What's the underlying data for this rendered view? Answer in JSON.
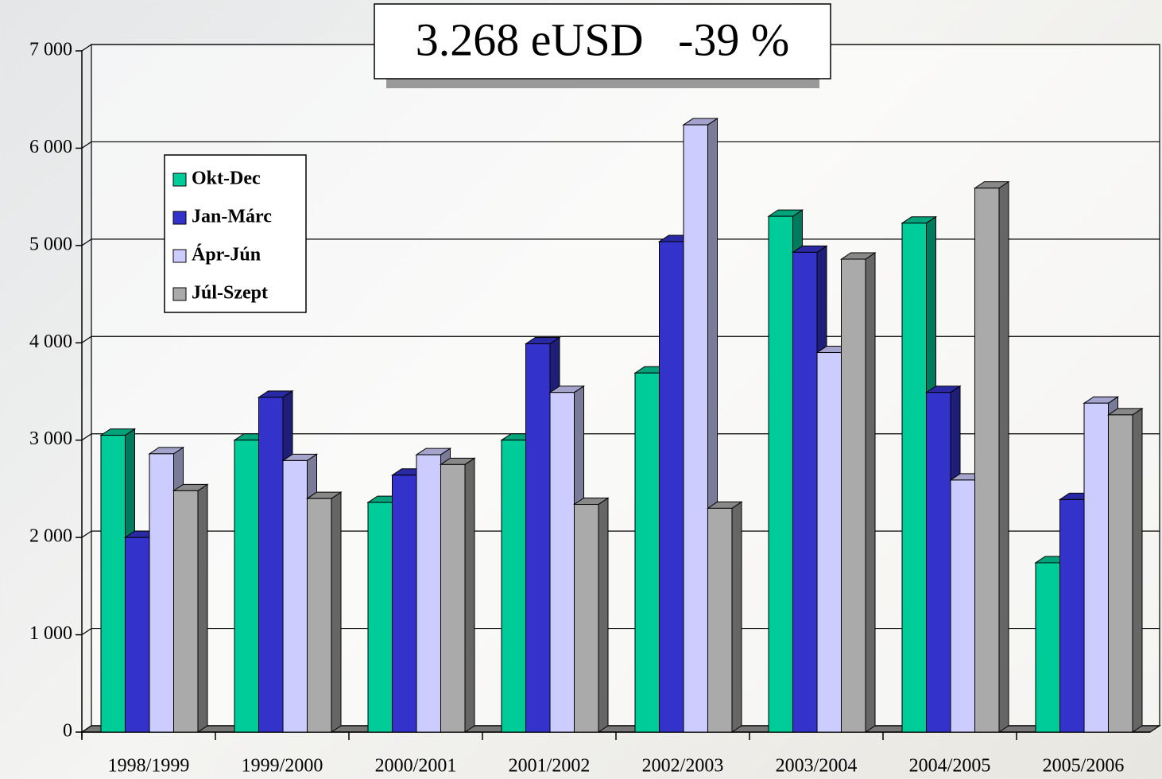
{
  "chart_data": {
    "type": "bar",
    "title": "3.268 eUSD   -39 %",
    "categories": [
      "1998/1999",
      "1999/2000",
      "2000/2001",
      "2001/2002",
      "2002/2003",
      "2003/2004",
      "2004/2005",
      "2005/2006"
    ],
    "series": [
      {
        "name": "Okt-Dec",
        "color": "#00cc99",
        "values": [
          3050,
          3000,
          2360,
          3000,
          3690,
          5300,
          5230,
          1740
        ]
      },
      {
        "name": "Jan-Márc",
        "color": "#3333cc",
        "values": [
          2000,
          3440,
          2640,
          3990,
          5040,
          4930,
          3490,
          2390
        ]
      },
      {
        "name": "Ápr-Jún",
        "color": "#ccccff",
        "values": [
          2860,
          2790,
          2850,
          3490,
          6240,
          3900,
          2590,
          3380
        ]
      },
      {
        "name": "Júl-Szept",
        "color": "#aaaaaa",
        "values": [
          2480,
          2400,
          2750,
          2340,
          2300,
          4860,
          5590,
          3260
        ]
      }
    ],
    "ylim": [
      0,
      7000
    ],
    "yticks": [
      {
        "value": 0,
        "label": "0"
      },
      {
        "value": 1000,
        "label": "1 000"
      },
      {
        "value": 2000,
        "label": "2 000"
      },
      {
        "value": 3000,
        "label": "3 000"
      },
      {
        "value": 4000,
        "label": "4 000"
      },
      {
        "value": 5000,
        "label": "5 000"
      },
      {
        "value": 6000,
        "label": "6 000"
      },
      {
        "value": 7000,
        "label": "7 000"
      }
    ],
    "grid": true,
    "legend": "upper left"
  }
}
